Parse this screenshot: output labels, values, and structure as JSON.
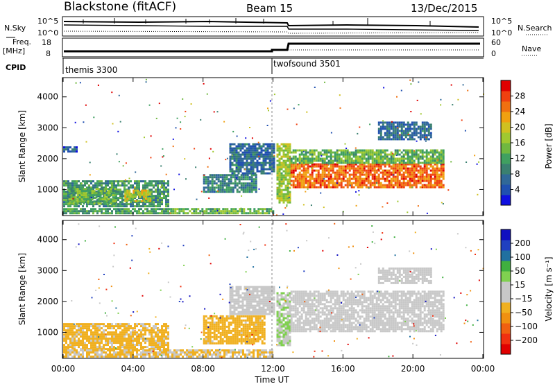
{
  "header": {
    "station": "Blackstone (fitACF)",
    "beam": "Beam 15",
    "date": "13/Dec/2015"
  },
  "top_panels": {
    "nsky_label": "N.Sky",
    "nsky_ticks": [
      "10^5",
      "10^0"
    ],
    "nsearch_label": "N.Search",
    "freq_label_1": "Freq.",
    "freq_label_2": "[MHz]",
    "freq_ticks": [
      "18",
      "8"
    ],
    "nave_label": "Nave",
    "nave_ticks": [
      "60",
      "0"
    ],
    "cpid_label": "CPID",
    "cpid_modes": [
      {
        "name": "themis 3300",
        "start_hour": 0
      },
      {
        "name": "twofsound 3501",
        "start_hour": 12
      }
    ]
  },
  "chart_data": [
    {
      "type": "heatmap",
      "title": "",
      "xlabel": "Time UT",
      "ylabel": "Slant Range [km]",
      "x_ticks": [
        "00:00",
        "04:00",
        "08:00",
        "12:00",
        "16:00",
        "20:00",
        "00:00"
      ],
      "x_range_hours": [
        0,
        24
      ],
      "y_ticks": [
        1000,
        2000,
        3000,
        4000
      ],
      "ylim": [
        180,
        4600
      ],
      "colorbar": {
        "label": "Power [dB]",
        "ticks": [
          "28",
          "24",
          "20",
          "16",
          "12",
          "8",
          "4"
        ],
        "range": [
          0,
          32
        ],
        "colors": [
          "#1010e0",
          "#2050b0",
          "#306898",
          "#3a8070",
          "#40a060",
          "#70b840",
          "#a0c830",
          "#d0c020",
          "#f0a010",
          "#f07010",
          "#f04010",
          "#e00000"
        ]
      },
      "echo_regions": [
        {
          "t0": 0.0,
          "t1": 6.0,
          "r0": 450,
          "r1": 1300,
          "dB": 11
        },
        {
          "t0": 3.5,
          "t1": 5.0,
          "r0": 650,
          "r1": 1000,
          "dB": 19
        },
        {
          "t0": 0.3,
          "t1": 3.0,
          "r0": 550,
          "r1": 1050,
          "dB": 14
        },
        {
          "t0": 6.0,
          "t1": 12.0,
          "r0": 200,
          "r1": 400,
          "dB": 14
        },
        {
          "t0": 0.0,
          "t1": 6.0,
          "r0": 200,
          "r1": 400,
          "dB": 12
        },
        {
          "t0": 8.0,
          "t1": 11.0,
          "r0": 950,
          "r1": 1500,
          "dB": 9
        },
        {
          "t0": 9.5,
          "t1": 12.0,
          "r0": 1550,
          "r1": 2500,
          "dB": 7
        },
        {
          "t0": 0.0,
          "t1": 0.8,
          "r0": 2200,
          "r1": 2400,
          "dB": 6
        },
        {
          "t0": 12.2,
          "t1": 13.0,
          "r0": 600,
          "r1": 2500,
          "dB": 17
        },
        {
          "t0": 13.0,
          "t1": 21.8,
          "r0": 1050,
          "r1": 1850,
          "dB": 26
        },
        {
          "t0": 13.0,
          "t1": 21.8,
          "r0": 1850,
          "r1": 2300,
          "dB": 14
        },
        {
          "t0": 18.0,
          "t1": 21.0,
          "r0": 2600,
          "r1": 3200,
          "dB": 7
        }
      ]
    },
    {
      "type": "heatmap",
      "title": "",
      "xlabel": "Time UT",
      "ylabel": "Slant Range [km]",
      "x_ticks": [
        "00:00",
        "04:00",
        "08:00",
        "12:00",
        "16:00",
        "20:00",
        "00:00"
      ],
      "x_range_hours": [
        0,
        24
      ],
      "y_ticks": [
        1000,
        2000,
        3000,
        4000
      ],
      "ylim": [
        180,
        4600
      ],
      "colorbar": {
        "label": "Velocity [m s⁻¹]",
        "ticks": [
          "200",
          "100",
          "50",
          "15",
          "−15",
          "−50",
          "−100",
          "−200"
        ],
        "range": [
          -250,
          250
        ],
        "colors": [
          "#e00000",
          "#f03010",
          "#f06010",
          "#f09010",
          "#f0b020",
          "#c8c8c8",
          "#c8c8c8",
          "#80d050",
          "#40b040",
          "#2070a0",
          "#2040c0",
          "#1010c0"
        ]
      },
      "echo_regions": [
        {
          "t0": 0.0,
          "t1": 6.0,
          "r0": 450,
          "r1": 1300,
          "v": -55
        },
        {
          "t0": 0.0,
          "t1": 12.0,
          "r0": 200,
          "r1": 450,
          "v": -45
        },
        {
          "t0": 8.0,
          "t1": 11.5,
          "r0": 650,
          "r1": 1550,
          "v": -60
        },
        {
          "t0": 9.5,
          "t1": 12.0,
          "r0": 1600,
          "r1": 2500,
          "v": 0
        },
        {
          "t0": 12.2,
          "t1": 13.0,
          "r0": 600,
          "r1": 2300,
          "v": 40
        },
        {
          "t0": 13.0,
          "t1": 21.8,
          "r0": 1050,
          "r1": 2350,
          "v": 0
        },
        {
          "t0": 18.0,
          "t1": 21.0,
          "r0": 2600,
          "r1": 3100,
          "v": -20
        }
      ]
    }
  ]
}
